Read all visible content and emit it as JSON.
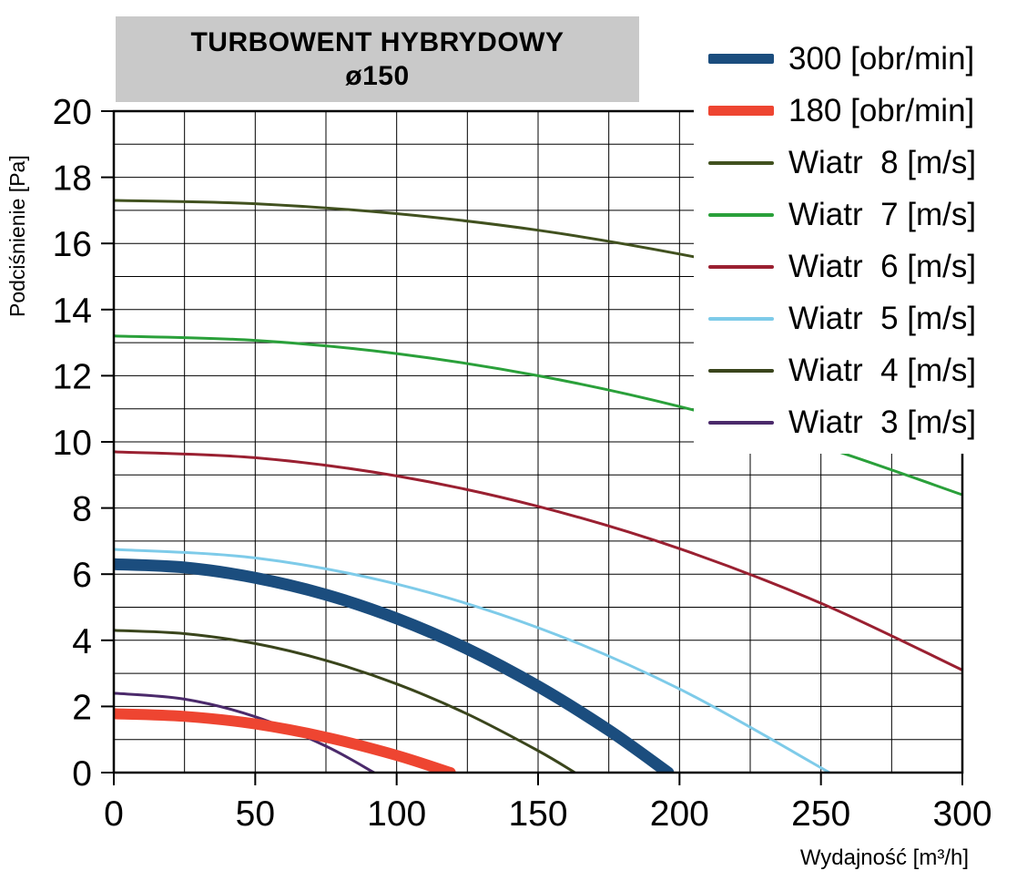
{
  "title": {
    "line1": "TURBOWENT HYBRYDOWY",
    "line2": "ø150"
  },
  "axes": {
    "y_label": "Podciśnienie [Pa]",
    "x_label": "Wydajność [m³/h]",
    "x_ticks": [
      0,
      50,
      100,
      150,
      200,
      250,
      300
    ],
    "y_ticks": [
      0,
      2,
      4,
      6,
      8,
      10,
      12,
      14,
      16,
      18,
      20
    ],
    "x_minor_step": 25,
    "y_minor_step": 1,
    "x_range": [
      0,
      300
    ],
    "y_range": [
      0,
      20
    ]
  },
  "chart_data": {
    "type": "line",
    "title": "TURBOWENT HYBRYDOWY ø150",
    "xlabel": "Wydajność [m³/h]",
    "ylabel": "Podciśnienie [Pa]",
    "xlim": [
      0,
      300
    ],
    "ylim": [
      0,
      20
    ],
    "grid": true,
    "legend_position": "top-right",
    "series": [
      {
        "name": "300 [obr/min]",
        "color": "#1b4d7e",
        "width": 13,
        "points": [
          [
            0,
            6.3
          ],
          [
            25,
            6.2
          ],
          [
            50,
            5.89
          ],
          [
            75,
            5.38
          ],
          [
            100,
            4.66
          ],
          [
            125,
            3.74
          ],
          [
            150,
            2.61
          ],
          [
            175,
            1.28
          ],
          [
            196,
            0
          ]
        ]
      },
      {
        "name": "180 [obr/min]",
        "color": "#ee4531",
        "width": 12,
        "points": [
          [
            0,
            1.78
          ],
          [
            25,
            1.7
          ],
          [
            50,
            1.47
          ],
          [
            75,
            1.07
          ],
          [
            100,
            0.52
          ],
          [
            119,
            0
          ]
        ]
      },
      {
        "name": "Wiatr  8 [m/s]",
        "color": "#41511f",
        "width": 3,
        "points": [
          [
            0,
            17.3
          ],
          [
            50,
            17.2
          ],
          [
            100,
            16.9
          ],
          [
            150,
            16.4
          ],
          [
            200,
            15.68
          ],
          [
            250,
            14.77
          ],
          [
            300,
            13.66
          ]
        ]
      },
      {
        "name": "Wiatr  7 [m/s]",
        "color": "#2aa03a",
        "width": 3,
        "points": [
          [
            0,
            13.2
          ],
          [
            50,
            13.07
          ],
          [
            100,
            12.67
          ],
          [
            150,
            12.0
          ],
          [
            200,
            11.07
          ],
          [
            250,
            9.87
          ],
          [
            300,
            8.4
          ]
        ]
      },
      {
        "name": "Wiatr  6 [m/s]",
        "color": "#9a2031",
        "width": 3,
        "points": [
          [
            0,
            9.7
          ],
          [
            50,
            9.52
          ],
          [
            100,
            8.97
          ],
          [
            150,
            8.05
          ],
          [
            200,
            6.77
          ],
          [
            250,
            5.12
          ],
          [
            300,
            3.1
          ]
        ]
      },
      {
        "name": "Wiatr  5 [m/s]",
        "color": "#7ecbe9",
        "width": 3,
        "points": [
          [
            0,
            6.75
          ],
          [
            50,
            6.49
          ],
          [
            100,
            5.7
          ],
          [
            150,
            4.38
          ],
          [
            200,
            2.53
          ],
          [
            253,
            0
          ]
        ]
      },
      {
        "name": "Wiatr  4 [m/s]",
        "color": "#3a451c",
        "width": 3,
        "points": [
          [
            0,
            4.3
          ],
          [
            25,
            4.2
          ],
          [
            50,
            3.9
          ],
          [
            75,
            3.39
          ],
          [
            100,
            2.68
          ],
          [
            125,
            1.77
          ],
          [
            150,
            0.66
          ],
          [
            163,
            0
          ]
        ]
      },
      {
        "name": "Wiatr  3 [m/s]",
        "color": "#4b2a6b",
        "width": 3,
        "points": [
          [
            0,
            2.4
          ],
          [
            25,
            2.22
          ],
          [
            50,
            1.69
          ],
          [
            75,
            0.8
          ],
          [
            92,
            0
          ]
        ]
      }
    ]
  }
}
